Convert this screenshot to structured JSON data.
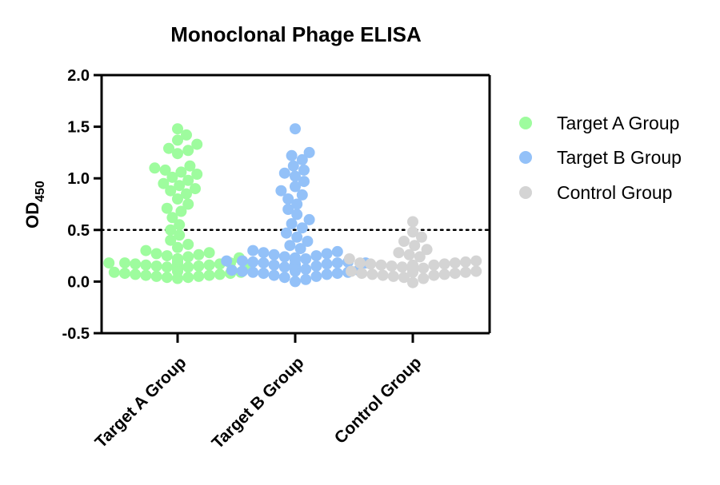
{
  "chart_data": {
    "type": "scatter",
    "title": "Monoclonal Phage ELISA",
    "ylabel_main": "OD",
    "ylabel_sub": "450",
    "ylim": [
      -0.5,
      2.0
    ],
    "yticks": [
      "-0.5",
      "0.0",
      "0.5",
      "1.0",
      "1.5",
      "2.0"
    ],
    "threshold": 0.5,
    "grid": false,
    "legend_position": "right",
    "categories": [
      "Target A Group",
      "Target B Group",
      "Control Group"
    ],
    "series": [
      {
        "name": "Target A Group",
        "color": "#9efc9e",
        "values": [
          1.48,
          1.42,
          1.37,
          1.33,
          1.29,
          1.27,
          1.24,
          1.12,
          1.1,
          1.08,
          1.06,
          1.04,
          1.01,
          0.98,
          0.95,
          0.93,
          0.9,
          0.88,
          0.85,
          0.8,
          0.75,
          0.71,
          0.68,
          0.62,
          0.55,
          0.5,
          0.45,
          0.4,
          0.36,
          0.33,
          0.3,
          0.28,
          0.27,
          0.26,
          0.25,
          0.24,
          0.23,
          0.22,
          0.22,
          0.21,
          0.2,
          0.2,
          0.19,
          0.19,
          0.18,
          0.18,
          0.17,
          0.17,
          0.16,
          0.16,
          0.15,
          0.15,
          0.14,
          0.14,
          0.13,
          0.13,
          0.12,
          0.12,
          0.11,
          0.11,
          0.1,
          0.1,
          0.09,
          0.09,
          0.08,
          0.08,
          0.07,
          0.07,
          0.06,
          0.06,
          0.05,
          0.05,
          0.04,
          0.04,
          0.03,
          0.2,
          0.19,
          0.18,
          0.17,
          0.16,
          0.15,
          0.14
        ]
      },
      {
        "name": "Target B Group",
        "color": "#93c1f8",
        "values": [
          1.48,
          1.25,
          1.22,
          1.18,
          1.12,
          1.08,
          1.05,
          1.02,
          0.97,
          0.92,
          0.88,
          0.84,
          0.8,
          0.75,
          0.7,
          0.65,
          0.6,
          0.56,
          0.52,
          0.47,
          0.43,
          0.39,
          0.35,
          0.32,
          0.3,
          0.29,
          0.28,
          0.27,
          0.26,
          0.25,
          0.24,
          0.23,
          0.22,
          0.22,
          0.21,
          0.21,
          0.2,
          0.2,
          0.19,
          0.19,
          0.18,
          0.18,
          0.17,
          0.17,
          0.16,
          0.16,
          0.15,
          0.15,
          0.14,
          0.14,
          0.13,
          0.13,
          0.12,
          0.12,
          0.11,
          0.11,
          0.1,
          0.1,
          0.09,
          0.09,
          0.08,
          0.08,
          0.07,
          0.06,
          0.05,
          0.04,
          0.02,
          0.0,
          0.12,
          0.18,
          0.22
        ]
      },
      {
        "name": "Control Group",
        "color": "#d4d4d4",
        "values": [
          0.58,
          0.48,
          0.43,
          0.39,
          0.35,
          0.31,
          0.28,
          0.26,
          0.24,
          0.22,
          0.2,
          0.19,
          0.18,
          0.18,
          0.17,
          0.17,
          0.16,
          0.16,
          0.15,
          0.15,
          0.14,
          0.14,
          0.13,
          0.13,
          0.12,
          0.12,
          0.11,
          0.11,
          0.1,
          0.1,
          0.1,
          0.09,
          0.09,
          0.08,
          0.08,
          0.07,
          0.07,
          0.06,
          0.06,
          0.05,
          0.04,
          0.03,
          -0.01,
          0.16,
          0.15,
          0.14,
          0.13,
          0.12
        ]
      }
    ]
  }
}
